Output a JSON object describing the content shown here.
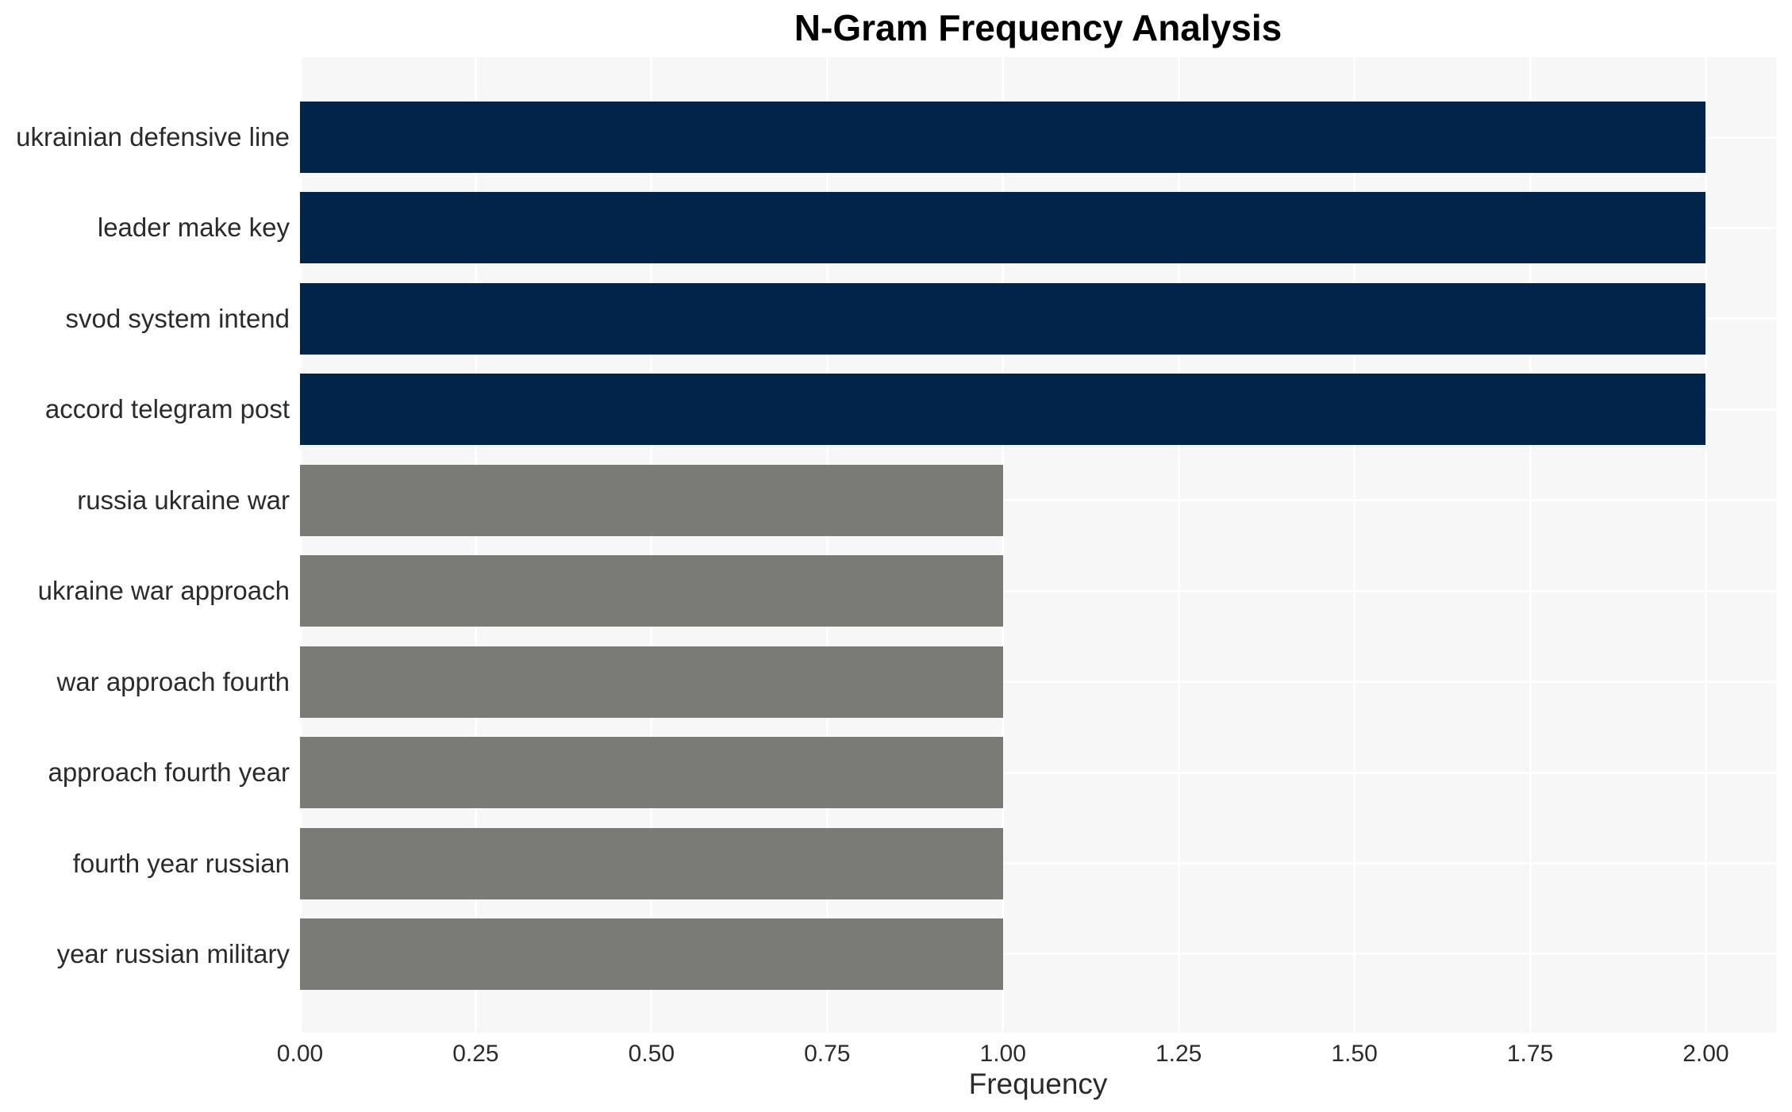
{
  "chart_data": {
    "type": "bar",
    "orientation": "horizontal",
    "title": "N-Gram Frequency Analysis",
    "xlabel": "Frequency",
    "ylabel": "",
    "categories": [
      "ukrainian defensive line",
      "leader make key",
      "svod system intend",
      "accord telegram post",
      "russia ukraine war",
      "ukraine war approach",
      "war approach fourth",
      "approach fourth year",
      "fourth year russian",
      "year russian military"
    ],
    "values": [
      2,
      2,
      2,
      2,
      1,
      1,
      1,
      1,
      1,
      1
    ],
    "bar_colors": [
      "#02234A",
      "#02234A",
      "#02234A",
      "#02234A",
      "#7A7A76",
      "#7A7A76",
      "#7A7A76",
      "#7A7A76",
      "#7A7A76",
      "#7A7A76"
    ],
    "xlim": [
      0,
      2.1
    ],
    "xticks": [
      0,
      0.25,
      0.5,
      0.75,
      1,
      1.25,
      1.5,
      1.75,
      2
    ],
    "xtick_labels": [
      "0.00",
      "0.25",
      "0.50",
      "0.75",
      "1.00",
      "1.25",
      "1.50",
      "1.75",
      "2.00"
    ],
    "grid": true,
    "legend": false,
    "colors": {
      "high_frequency_bar": "#02234A",
      "low_frequency_bar": "#7A7A76",
      "plot_background": "#F7F7F7",
      "gridline": "#FFFFFF",
      "tick_text": "#2B2B2B",
      "title_text": "#000000"
    }
  }
}
